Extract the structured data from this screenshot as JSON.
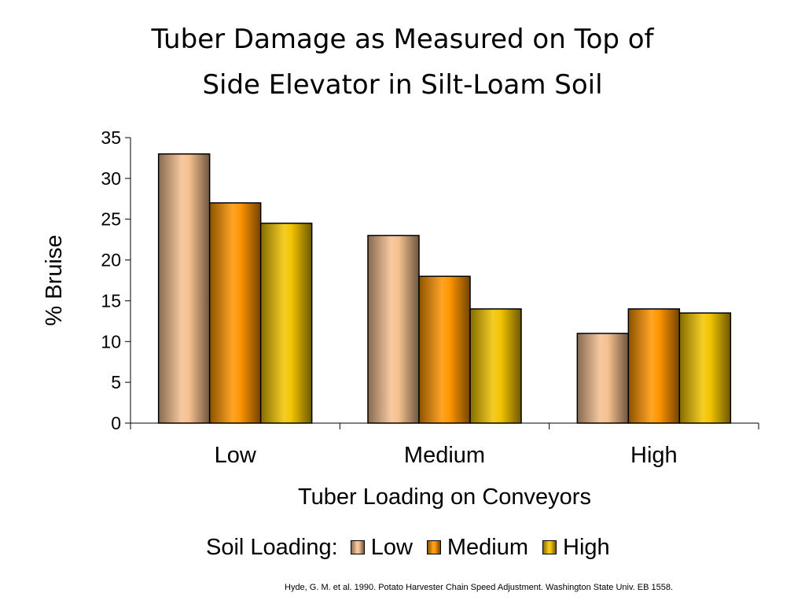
{
  "title_lines": [
    "Tuber Damage as Measured on Top of",
    "Side Elevator in Silt-Loam Soil"
  ],
  "legend_prefix": "Soil Loading:",
  "citation": "Hyde, G. M. et al. 1990. Potato Harvester Chain Speed Adjustment. Washington State Univ. EB 1558.",
  "chart_data": {
    "type": "bar",
    "title": "Tuber Damage as Measured on Top of Side Elevator in Silt-Loam Soil",
    "xlabel": "Tuber Loading on Conveyors",
    "ylabel": "% Bruise",
    "categories": [
      "Low",
      "Medium",
      "High"
    ],
    "ylim": [
      0,
      35
    ],
    "yticks": [
      0,
      5,
      10,
      15,
      20,
      25,
      30,
      35
    ],
    "grid": false,
    "legend_placement": "bottom",
    "series": [
      {
        "name": "Low",
        "values": [
          33,
          23,
          11
        ],
        "color": "#f5c08f"
      },
      {
        "name": "Medium",
        "values": [
          27,
          18,
          14
        ],
        "color": "#ff9500"
      },
      {
        "name": "High",
        "values": [
          24.5,
          14,
          13.5
        ],
        "color": "#f2c400"
      }
    ]
  }
}
